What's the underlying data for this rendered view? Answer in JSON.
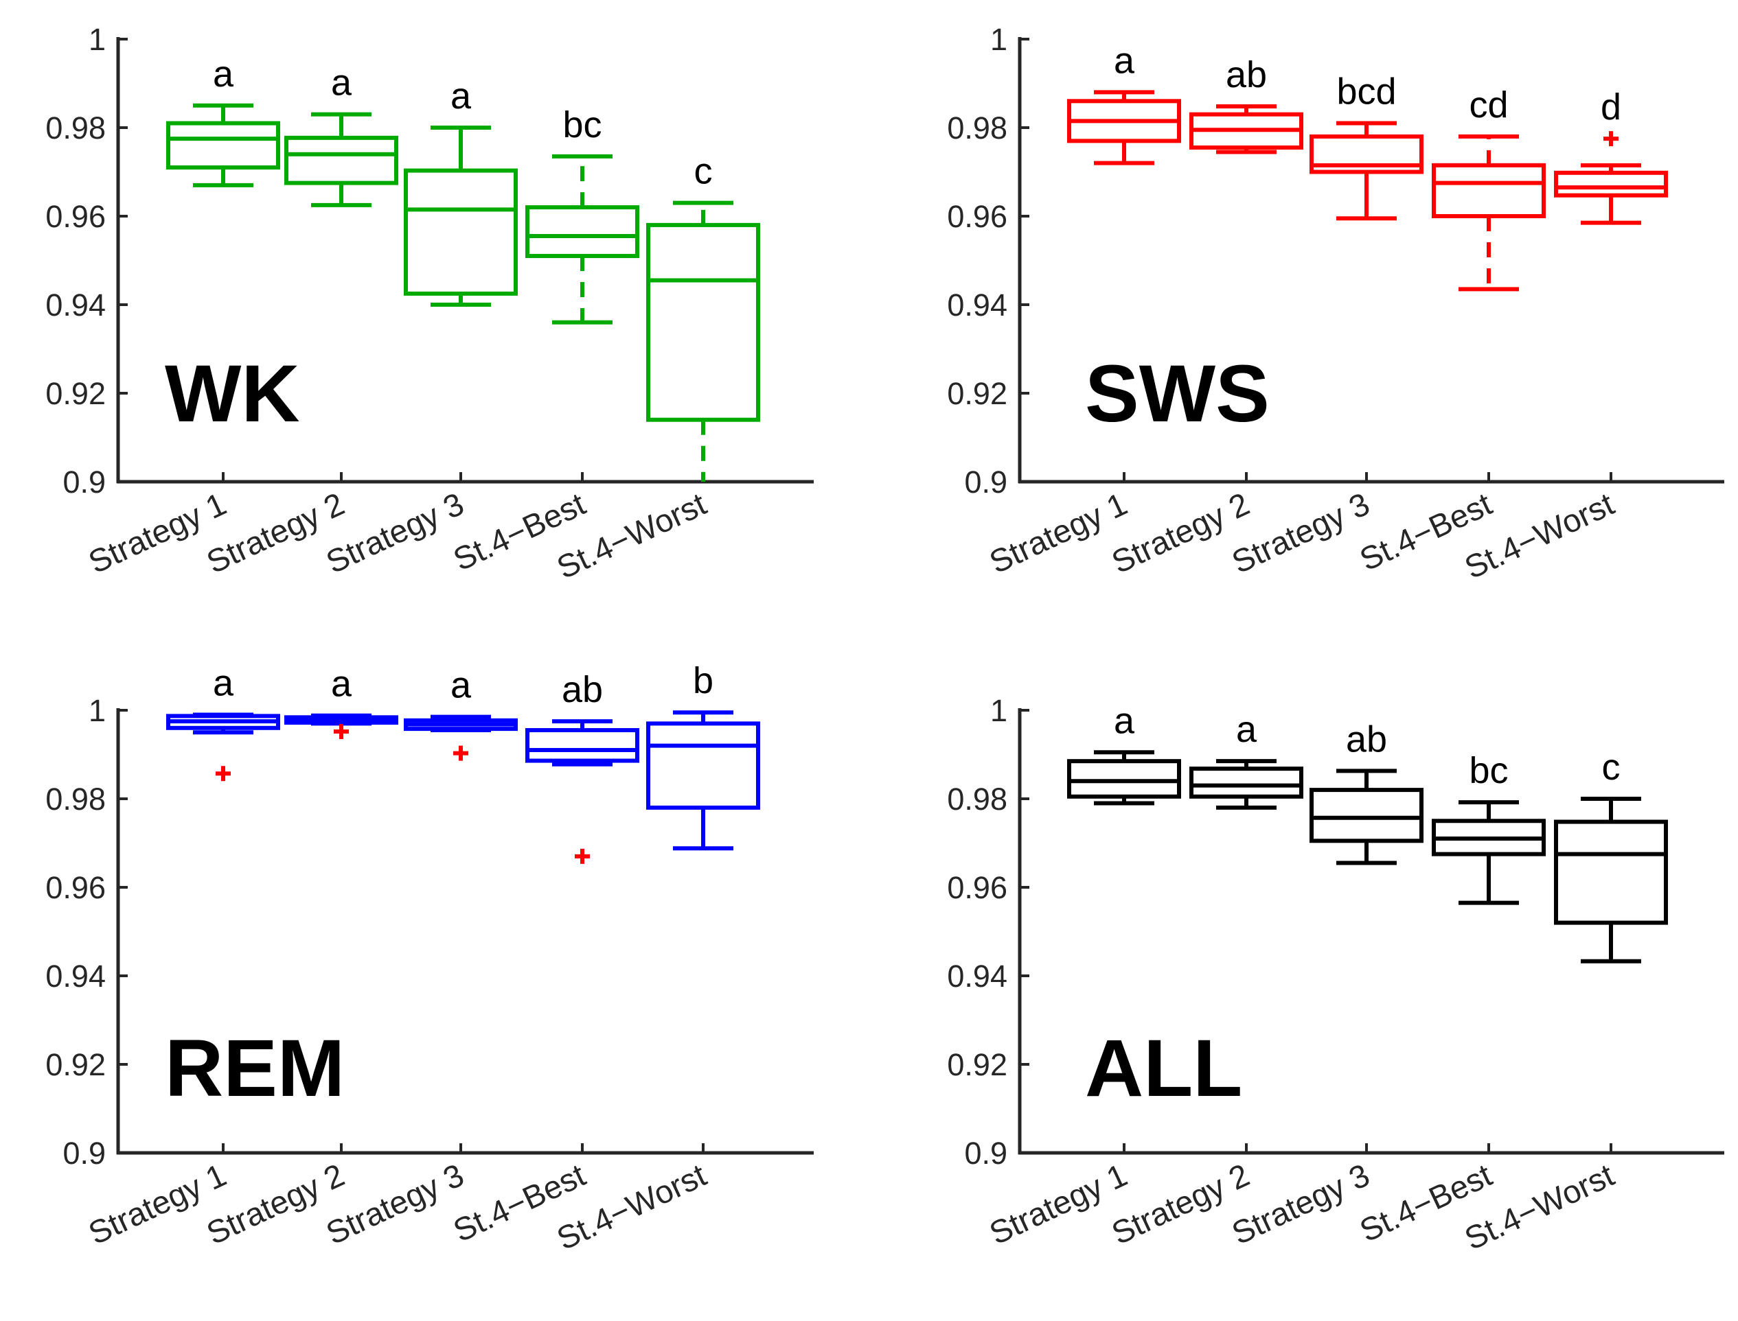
{
  "chart_data": [
    {
      "type": "box",
      "title": "WK",
      "color": "#00aa00",
      "whisker_style": "mixed",
      "ylim": [
        0.9,
        1.0
      ],
      "yticks": [
        0.9,
        0.92,
        0.94,
        0.96,
        0.98,
        1
      ],
      "ytick_labels": [
        "0.9",
        "0.92",
        "0.94",
        "0.96",
        "0.98",
        "1"
      ],
      "categories": [
        "Strategy 1",
        "Strategy 2",
        "Strategy 3",
        "St.4−Best",
        "St.4−Worst"
      ],
      "boxes": [
        {
          "whisker_low": 0.967,
          "q1": 0.971,
          "median": 0.9775,
          "q3": 0.981,
          "whisker_high": 0.985,
          "letter": "a",
          "dashed": false,
          "outliers": []
        },
        {
          "whisker_low": 0.9625,
          "q1": 0.9675,
          "median": 0.974,
          "q3": 0.9777,
          "whisker_high": 0.983,
          "letter": "a",
          "dashed": false,
          "outliers": []
        },
        {
          "whisker_low": 0.94,
          "q1": 0.9425,
          "median": 0.9615,
          "q3": 0.9703,
          "whisker_high": 0.98,
          "letter": "a",
          "dashed": false,
          "outliers": []
        },
        {
          "whisker_low": 0.936,
          "q1": 0.951,
          "median": 0.9555,
          "q3": 0.962,
          "whisker_high": 0.9735,
          "letter": "bc",
          "dashed": true,
          "outliers": []
        },
        {
          "whisker_low": 0.9,
          "q1": 0.914,
          "median": 0.9455,
          "q3": 0.958,
          "whisker_high": 0.963,
          "letter": "c",
          "dashed": true,
          "outliers": []
        }
      ]
    },
    {
      "type": "box",
      "title": "SWS",
      "color": "#ff0000",
      "ylim": [
        0.9,
        1.0
      ],
      "yticks": [
        0.9,
        0.92,
        0.94,
        0.96,
        0.98,
        1
      ],
      "ytick_labels": [
        "0.9",
        "0.92",
        "0.94",
        "0.96",
        "0.98",
        "1"
      ],
      "categories": [
        "Strategy 1",
        "Strategy 2",
        "Strategy 3",
        "St.4−Best",
        "St.4−Worst"
      ],
      "boxes": [
        {
          "whisker_low": 0.972,
          "q1": 0.977,
          "median": 0.9815,
          "q3": 0.986,
          "whisker_high": 0.988,
          "letter": "a",
          "dashed": false,
          "outliers": []
        },
        {
          "whisker_low": 0.9745,
          "q1": 0.9755,
          "median": 0.9795,
          "q3": 0.983,
          "whisker_high": 0.9848,
          "letter": "ab",
          "dashed": false,
          "outliers": []
        },
        {
          "whisker_low": 0.9595,
          "q1": 0.97,
          "median": 0.9715,
          "q3": 0.978,
          "whisker_high": 0.981,
          "letter": "bcd",
          "dashed": false,
          "outliers": []
        },
        {
          "whisker_low": 0.9435,
          "q1": 0.96,
          "median": 0.9675,
          "q3": 0.9715,
          "whisker_high": 0.978,
          "letter": "cd",
          "dashed": true,
          "outliers": []
        },
        {
          "whisker_low": 0.9585,
          "q1": 0.9647,
          "median": 0.9665,
          "q3": 0.9698,
          "whisker_high": 0.9715,
          "letter": "d",
          "dashed": false,
          "outliers": [
            0.9775
          ]
        }
      ]
    },
    {
      "type": "box",
      "title": "REM",
      "color": "#0000ff",
      "outlier_color": "#ff0000",
      "ylim": [
        0.9,
        1.0
      ],
      "yticks": [
        0.9,
        0.92,
        0.94,
        0.96,
        0.98,
        1
      ],
      "ytick_labels": [
        "0.9",
        "0.92",
        "0.94",
        "0.96",
        "0.98",
        "1"
      ],
      "categories": [
        "Strategy 1",
        "Strategy 2",
        "Strategy 3",
        "St.4−Best",
        "St.4−Worst"
      ],
      "boxes": [
        {
          "whisker_low": 0.995,
          "q1": 0.996,
          "median": 0.9975,
          "q3": 0.9987,
          "whisker_high": 0.999,
          "letter": "a",
          "dashed": false,
          "outliers": [
            0.9857
          ]
        },
        {
          "whisker_low": 0.997,
          "q1": 0.9972,
          "median": 0.9978,
          "q3": 0.9984,
          "whisker_high": 0.9988,
          "letter": "a",
          "dashed": false,
          "outliers": [
            0.9952
          ]
        },
        {
          "whisker_low": 0.9955,
          "q1": 0.9958,
          "median": 0.9968,
          "q3": 0.9977,
          "whisker_high": 0.9985,
          "letter": "a",
          "dashed": false,
          "outliers": [
            0.9903
          ]
        },
        {
          "whisker_low": 0.9878,
          "q1": 0.9886,
          "median": 0.991,
          "q3": 0.9955,
          "whisker_high": 0.9975,
          "letter": "ab",
          "dashed": false,
          "outliers": [
            0.967
          ]
        },
        {
          "whisker_low": 0.9688,
          "q1": 0.978,
          "median": 0.992,
          "q3": 0.997,
          "whisker_high": 0.9995,
          "letter": "b",
          "dashed": false,
          "outliers": []
        }
      ]
    },
    {
      "type": "box",
      "title": "ALL",
      "color": "#000000",
      "ylim": [
        0.9,
        1.0
      ],
      "yticks": [
        0.9,
        0.92,
        0.94,
        0.96,
        0.98,
        1
      ],
      "ytick_labels": [
        "0.9",
        "0.92",
        "0.94",
        "0.96",
        "0.98",
        "1"
      ],
      "categories": [
        "Strategy 1",
        "Strategy 2",
        "Strategy 3",
        "St.4−Best",
        "St.4−Worst"
      ],
      "boxes": [
        {
          "whisker_low": 0.979,
          "q1": 0.9805,
          "median": 0.984,
          "q3": 0.9885,
          "whisker_high": 0.9905,
          "letter": "a",
          "dashed": false,
          "outliers": []
        },
        {
          "whisker_low": 0.978,
          "q1": 0.9805,
          "median": 0.983,
          "q3": 0.9868,
          "whisker_high": 0.9885,
          "letter": "a",
          "dashed": false,
          "outliers": []
        },
        {
          "whisker_low": 0.9655,
          "q1": 0.9705,
          "median": 0.9757,
          "q3": 0.982,
          "whisker_high": 0.9863,
          "letter": "ab",
          "dashed": false,
          "outliers": []
        },
        {
          "whisker_low": 0.9565,
          "q1": 0.9675,
          "median": 0.971,
          "q3": 0.975,
          "whisker_high": 0.9792,
          "letter": "bc",
          "dashed": false,
          "outliers": []
        },
        {
          "whisker_low": 0.9433,
          "q1": 0.952,
          "median": 0.9675,
          "q3": 0.9748,
          "whisker_high": 0.98,
          "letter": "c",
          "dashed": false,
          "outliers": []
        }
      ]
    }
  ]
}
